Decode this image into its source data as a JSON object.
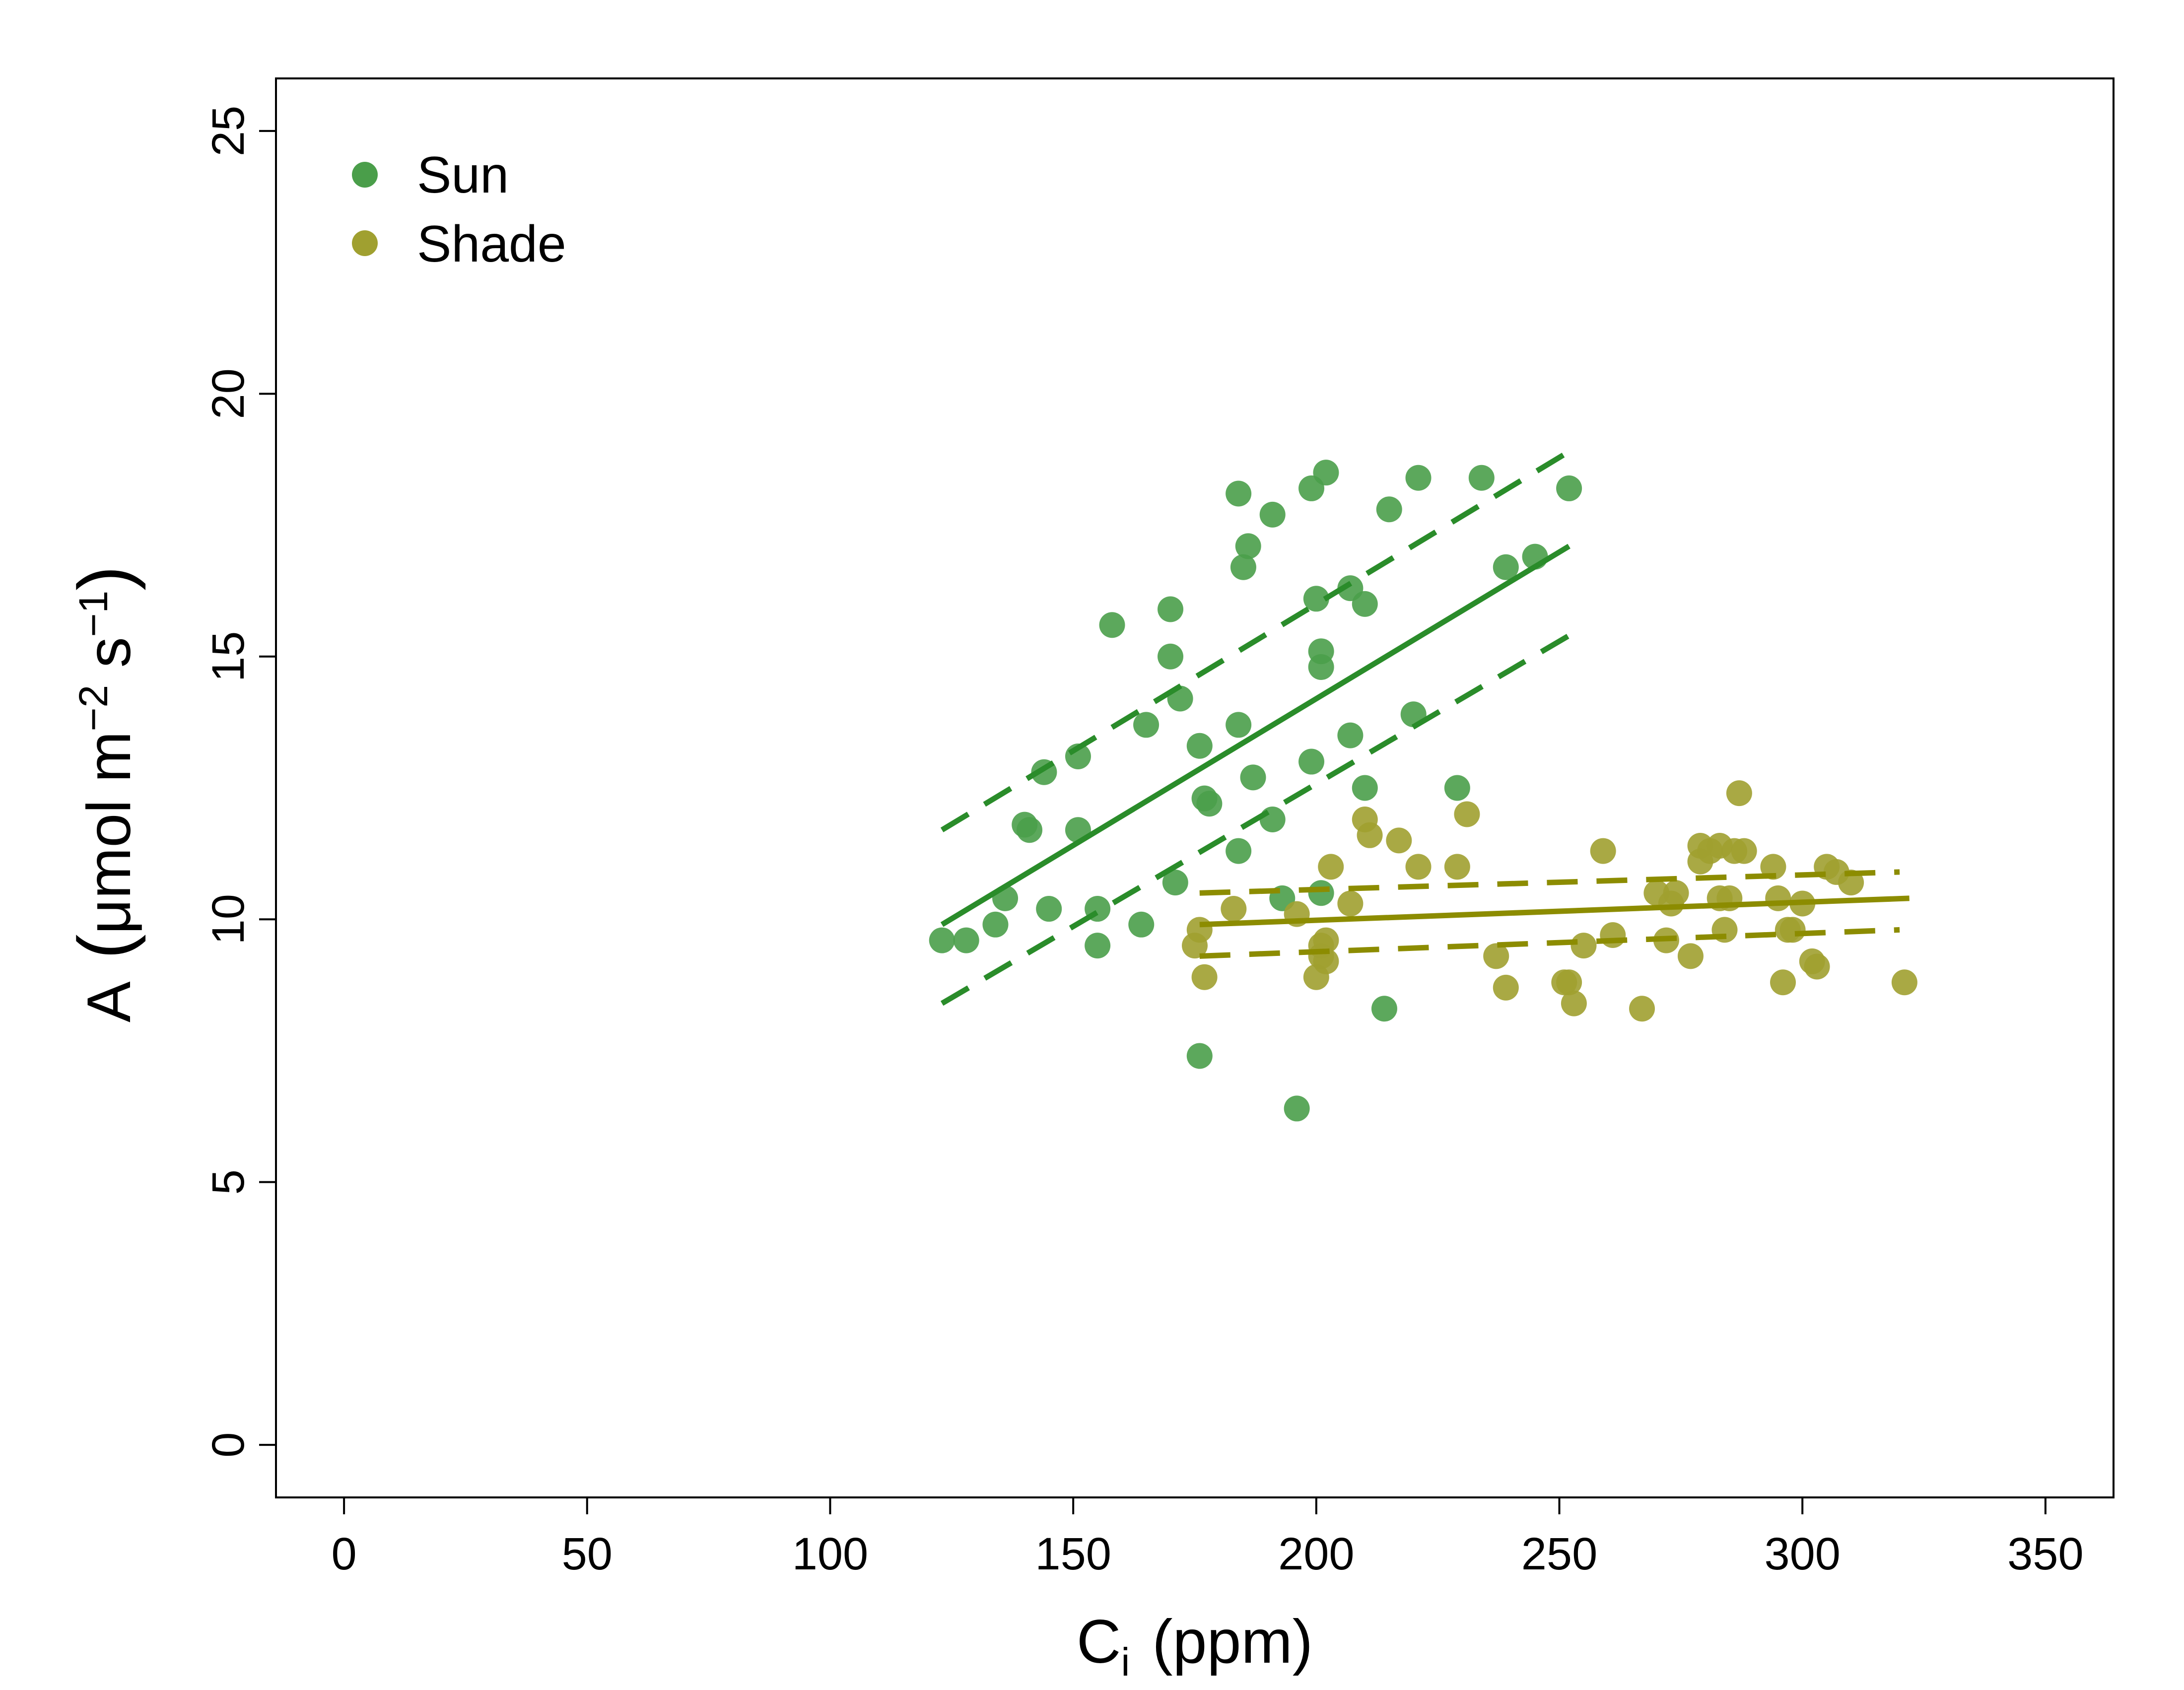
{
  "chart_data": {
    "type": "scatter",
    "title": "",
    "xlabel": {
      "main": "C",
      "sub": "i",
      "unit": "(ppm)"
    },
    "ylabel": {
      "prefix": "A",
      "open": "(",
      "unit_mu": "μ",
      "unit_text": "mol m",
      "m_exp": "−2",
      "unit_s": " s",
      "s_exp": "−1",
      "close": ")"
    },
    "xlim": [
      -14,
      364
    ],
    "ylim": [
      -1,
      26
    ],
    "xticks": [
      0,
      50,
      100,
      150,
      200,
      250,
      300,
      350
    ],
    "yticks": [
      0,
      5,
      10,
      15,
      20,
      25
    ],
    "xtick_labels": [
      "0",
      "50",
      "100",
      "150",
      "200",
      "250",
      "300",
      "350"
    ],
    "ytick_labels": [
      "0",
      "5",
      "10",
      "15",
      "20",
      "25"
    ],
    "grid": false,
    "legend_position": "top-left",
    "series": [
      {
        "name": "Sun",
        "color": "#4a9e4a",
        "line_color": "#2a8c2a",
        "fit": {
          "x": [
            123,
            252
          ],
          "y": [
            9.9,
            17.1
          ]
        },
        "ci_upper": {
          "x": [
            123,
            252
          ],
          "y": [
            11.7,
            18.9
          ]
        },
        "ci_lower": {
          "x": [
            123,
            252
          ],
          "y": [
            8.4,
            15.4
          ]
        },
        "points": [
          [
            123,
            9.6
          ],
          [
            128,
            9.6
          ],
          [
            134,
            9.9
          ],
          [
            136,
            10.4
          ],
          [
            140,
            11.8
          ],
          [
            141,
            11.7
          ],
          [
            144,
            12.8
          ],
          [
            145,
            10.2
          ],
          [
            151,
            13.1
          ],
          [
            151,
            11.7
          ],
          [
            155,
            9.5
          ],
          [
            155,
            10.2
          ],
          [
            158,
            15.6
          ],
          [
            164,
            9.9
          ],
          [
            165,
            13.7
          ],
          [
            170,
            15.9
          ],
          [
            170,
            15.0
          ],
          [
            171,
            10.7
          ],
          [
            172,
            14.2
          ],
          [
            176,
            13.3
          ],
          [
            177,
            12.3
          ],
          [
            178,
            12.2
          ],
          [
            176,
            7.4
          ],
          [
            184,
            18.1
          ],
          [
            185,
            16.7
          ],
          [
            186,
            17.1
          ],
          [
            184,
            13.7
          ],
          [
            184,
            11.3
          ],
          [
            187,
            12.7
          ],
          [
            191,
            17.7
          ],
          [
            191,
            11.9
          ],
          [
            193,
            10.4
          ],
          [
            196,
            6.4
          ],
          [
            199,
            18.2
          ],
          [
            200,
            16.1
          ],
          [
            199,
            13.0
          ],
          [
            201,
            15.1
          ],
          [
            202,
            18.5
          ],
          [
            201,
            14.8
          ],
          [
            201,
            10.5
          ],
          [
            207,
            16.3
          ],
          [
            207,
            13.5
          ],
          [
            210,
            16.0
          ],
          [
            210,
            12.5
          ],
          [
            214,
            8.3
          ],
          [
            215,
            17.8
          ],
          [
            220,
            13.9
          ],
          [
            221,
            18.4
          ],
          [
            229,
            12.5
          ],
          [
            234,
            18.4
          ],
          [
            239,
            16.7
          ],
          [
            245,
            16.9
          ],
          [
            252,
            18.2
          ]
        ]
      },
      {
        "name": "Shade",
        "color": "#a0a030",
        "line_color": "#8c8c00",
        "fit": {
          "x": [
            176,
            322
          ],
          "y": [
            9.9,
            10.4
          ]
        },
        "ci_upper": {
          "x": [
            176,
            320
          ],
          "y": [
            10.5,
            10.9
          ]
        },
        "ci_lower": {
          "x": [
            176,
            320
          ],
          "y": [
            9.3,
            9.8
          ]
        },
        "points": [
          [
            175,
            9.5
          ],
          [
            176,
            9.8
          ],
          [
            177,
            8.9
          ],
          [
            183,
            10.2
          ],
          [
            196,
            10.1
          ],
          [
            200,
            8.9
          ],
          [
            201,
            9.3
          ],
          [
            201,
            9.5
          ],
          [
            202,
            9.2
          ],
          [
            202,
            9.6
          ],
          [
            203,
            11.0
          ],
          [
            207,
            10.3
          ],
          [
            210,
            11.9
          ],
          [
            211,
            11.6
          ],
          [
            217,
            11.5
          ],
          [
            221,
            11.0
          ],
          [
            229,
            11.0
          ],
          [
            231,
            12.0
          ],
          [
            237,
            9.3
          ],
          [
            239,
            8.7
          ],
          [
            251,
            8.8
          ],
          [
            252,
            8.8
          ],
          [
            253,
            8.4
          ],
          [
            255,
            9.5
          ],
          [
            259,
            11.3
          ],
          [
            261,
            9.7
          ],
          [
            267,
            8.3
          ],
          [
            270,
            10.5
          ],
          [
            272,
            9.6
          ],
          [
            273,
            10.3
          ],
          [
            274,
            10.5
          ],
          [
            277,
            9.3
          ],
          [
            279,
            11.4
          ],
          [
            279,
            11.1
          ],
          [
            281,
            11.3
          ],
          [
            283,
            10.4
          ],
          [
            283,
            11.4
          ],
          [
            284,
            9.8
          ],
          [
            285,
            10.4
          ],
          [
            286,
            11.3
          ],
          [
            287,
            12.4
          ],
          [
            288,
            11.3
          ],
          [
            294,
            11.0
          ],
          [
            295,
            10.4
          ],
          [
            296,
            8.8
          ],
          [
            297,
            9.8
          ],
          [
            298,
            9.8
          ],
          [
            300,
            10.3
          ],
          [
            302,
            9.2
          ],
          [
            303,
            9.1
          ],
          [
            305,
            11.0
          ],
          [
            307,
            10.9
          ],
          [
            310,
            10.7
          ],
          [
            321,
            8.8
          ]
        ]
      }
    ]
  }
}
